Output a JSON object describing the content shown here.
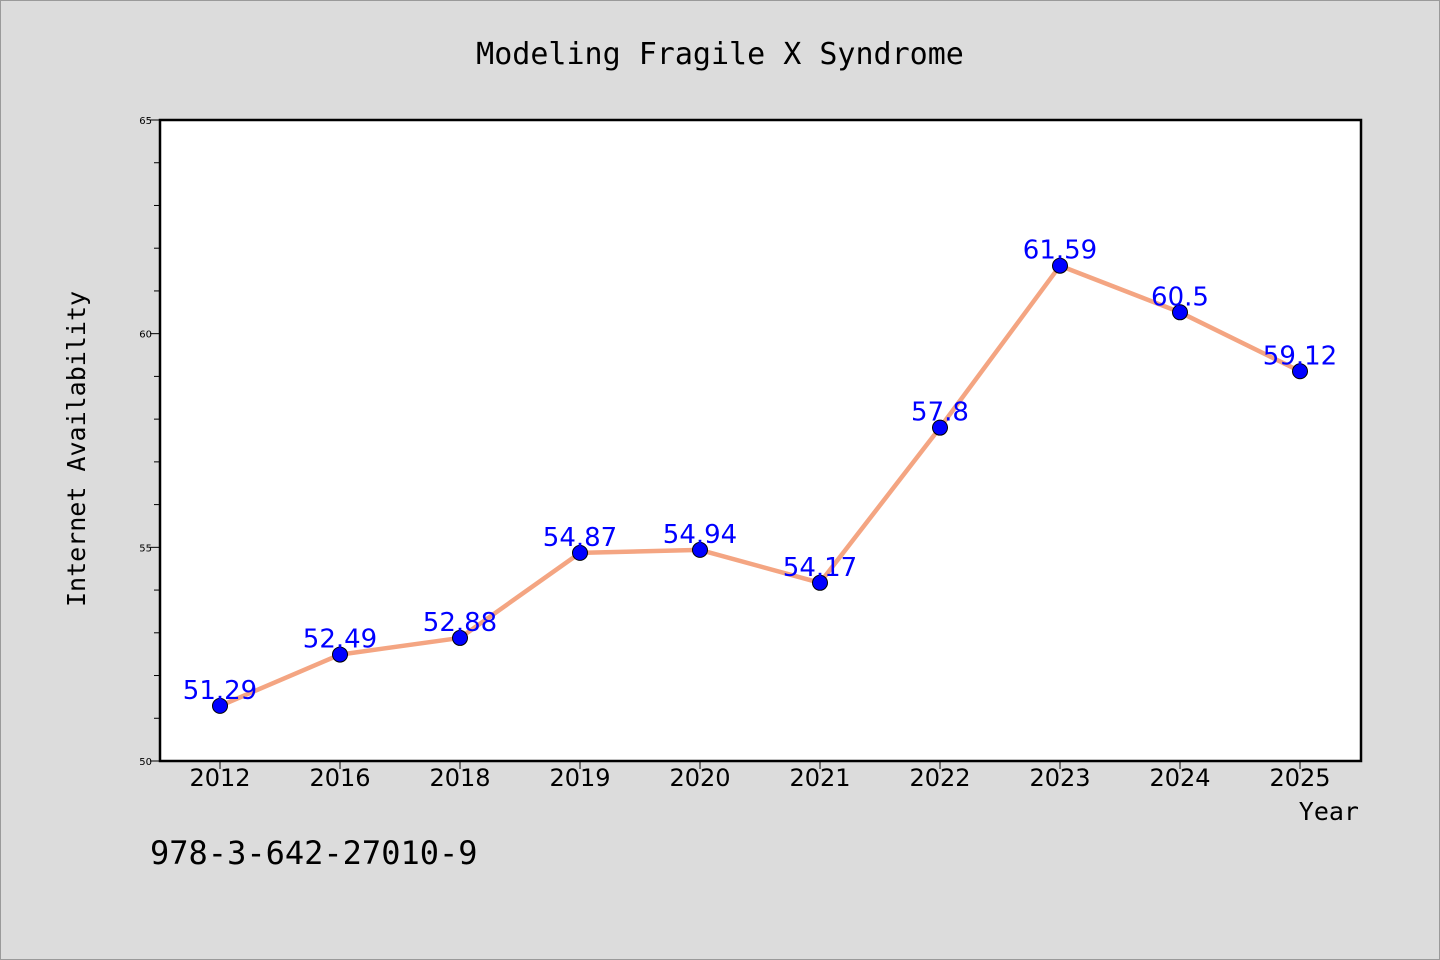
{
  "chart_data": {
    "type": "line",
    "title": "Modeling Fragile X Syndrome",
    "xlabel": "Year",
    "ylabel": "Internet Availability",
    "categories": [
      "2012",
      "2016",
      "2018",
      "2019",
      "2020",
      "2021",
      "2022",
      "2023",
      "2024",
      "2025"
    ],
    "series": [
      {
        "values": [
          51.29,
          52.49,
          52.88,
          54.87,
          54.94,
          54.17,
          57.8,
          61.59,
          60.5,
          59.12
        ],
        "data_labels": [
          "51.29",
          "52.49",
          "52.88",
          "54.87",
          "54.94",
          "54.17",
          "57.8",
          "61.59",
          "60.5",
          "59.12"
        ],
        "line_color": "#f4a582",
        "marker_color": "#0000ff",
        "label_color": "#0000ff"
      }
    ],
    "ylim": [
      50,
      65
    ],
    "yticks": [
      "50",
      "55",
      "60",
      "65"
    ],
    "grid": false,
    "legend": "none"
  },
  "annotation": "978-3-642-27010-9",
  "colors": {
    "background": "#dcdcdc",
    "plot_area": "#ffffff"
  }
}
